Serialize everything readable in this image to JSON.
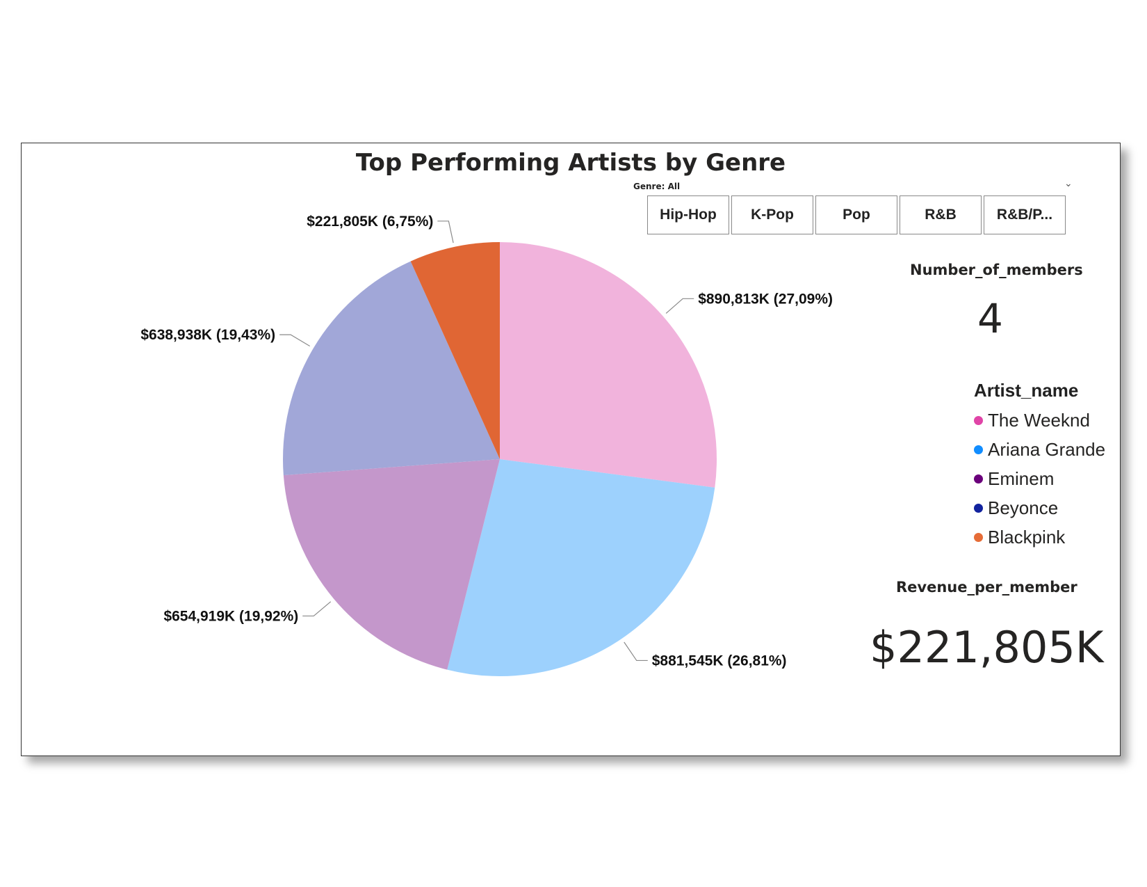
{
  "chart_data": {
    "type": "pie",
    "title": "Top Performing Artists by Genre",
    "slices": [
      {
        "label": "$890,813K (27,09%)",
        "value": 890813,
        "percent": 27.09,
        "color": "#f1b3dc"
      },
      {
        "label": "$881,545K (26,81%)",
        "value": 881545,
        "percent": 26.81,
        "color": "#9dd1fd"
      },
      {
        "label": "$654,919K (19,92%)",
        "value": 654919,
        "percent": 19.92,
        "color": "#c497cb"
      },
      {
        "label": "$638,938K (19,43%)",
        "value": 638938,
        "percent": 19.43,
        "color": "#a1a7d8"
      },
      {
        "label": "$221,805K (6,75%)",
        "value": 221805,
        "percent": 6.75,
        "color": "#e06634"
      }
    ],
    "legend": {
      "title": "Artist_name",
      "placement": "right",
      "items": [
        {
          "name": "The Weeknd",
          "color": "#e044a7"
        },
        {
          "name": "Ariana Grande",
          "color": "#118dff"
        },
        {
          "name": "Eminem",
          "color": "#6b007b"
        },
        {
          "name": "Beyonce",
          "color": "#12239e"
        },
        {
          "name": "Blackpink",
          "color": "#e66c37"
        }
      ]
    }
  },
  "slicer": {
    "header": "Genre: All",
    "options": [
      "Hip-Hop",
      "K-Pop",
      "Pop",
      "R&B",
      "R&B/P..."
    ]
  },
  "cards": {
    "members_label": "Number_of_members",
    "members_value": "4",
    "revenue_label": "Revenue_per_member",
    "revenue_value": "$221,805K"
  }
}
